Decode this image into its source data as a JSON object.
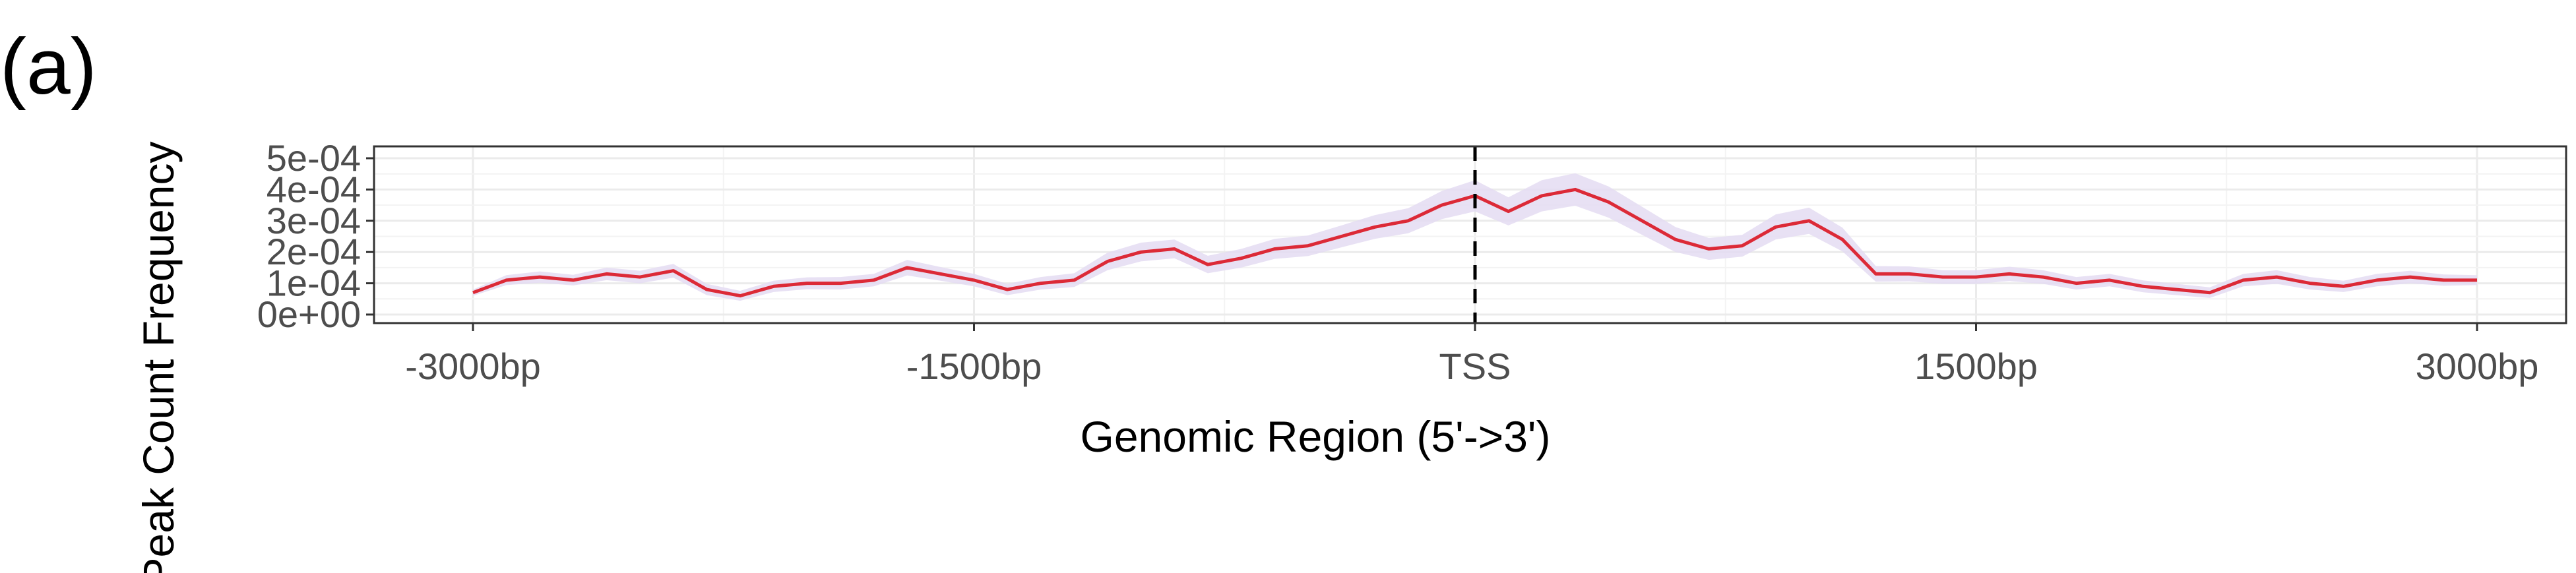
{
  "panel_label": "(a)",
  "chart_data": {
    "type": "line",
    "title": "",
    "xlabel": "Genomic Region (5'->3')",
    "ylabel": "Peak Count Frequency",
    "xlim": [
      -3000,
      3000
    ],
    "ylim": [
      0,
      0.0005
    ],
    "x_ticks": [
      {
        "value": -3000,
        "label": "-3000bp"
      },
      {
        "value": -1500,
        "label": "-1500bp"
      },
      {
        "value": 0,
        "label": "TSS"
      },
      {
        "value": 1500,
        "label": "1500bp"
      },
      {
        "value": 3000,
        "label": "3000bp"
      }
    ],
    "y_ticks": [
      {
        "value": 0,
        "label": "0e+00"
      },
      {
        "value": 0.0001,
        "label": "1e-04"
      },
      {
        "value": 0.0002,
        "label": "2e-04"
      },
      {
        "value": 0.0003,
        "label": "3e-04"
      },
      {
        "value": 0.0004,
        "label": "4e-04"
      },
      {
        "value": 0.0005,
        "label": "5e-04"
      }
    ],
    "grid": true,
    "reference_line": {
      "x": 0,
      "style": "dashed"
    },
    "series": [
      {
        "color": "#dc2a37",
        "band_color": "#e4dcf2",
        "points": [
          [
            -3000,
            7e-05
          ],
          [
            -2900,
            0.00011
          ],
          [
            -2800,
            0.00012
          ],
          [
            -2700,
            0.00011
          ],
          [
            -2600,
            0.00013
          ],
          [
            -2500,
            0.00012
          ],
          [
            -2400,
            0.00014
          ],
          [
            -2300,
            8e-05
          ],
          [
            -2200,
            6e-05
          ],
          [
            -2100,
            9e-05
          ],
          [
            -2000,
            0.0001
          ],
          [
            -1900,
            0.0001
          ],
          [
            -1800,
            0.00011
          ],
          [
            -1700,
            0.00015
          ],
          [
            -1600,
            0.00013
          ],
          [
            -1500,
            0.00011
          ],
          [
            -1400,
            8e-05
          ],
          [
            -1300,
            0.0001
          ],
          [
            -1200,
            0.00011
          ],
          [
            -1100,
            0.00017
          ],
          [
            -1000,
            0.0002
          ],
          [
            -900,
            0.00021
          ],
          [
            -800,
            0.00016
          ],
          [
            -700,
            0.00018
          ],
          [
            -600,
            0.00021
          ],
          [
            -500,
            0.00022
          ],
          [
            -400,
            0.00025
          ],
          [
            -300,
            0.00028
          ],
          [
            -200,
            0.0003
          ],
          [
            -100,
            0.00035
          ],
          [
            0,
            0.00038
          ],
          [
            100,
            0.00033
          ],
          [
            200,
            0.00038
          ],
          [
            300,
            0.0004
          ],
          [
            400,
            0.00036
          ],
          [
            500,
            0.0003
          ],
          [
            600,
            0.00024
          ],
          [
            700,
            0.00021
          ],
          [
            800,
            0.00022
          ],
          [
            900,
            0.00028
          ],
          [
            1000,
            0.0003
          ],
          [
            1100,
            0.00024
          ],
          [
            1200,
            0.00013
          ],
          [
            1300,
            0.00013
          ],
          [
            1400,
            0.00012
          ],
          [
            1500,
            0.00012
          ],
          [
            1600,
            0.00013
          ],
          [
            1700,
            0.00012
          ],
          [
            1800,
            0.0001
          ],
          [
            1900,
            0.00011
          ],
          [
            2000,
            9e-05
          ],
          [
            2100,
            8e-05
          ],
          [
            2200,
            7e-05
          ],
          [
            2300,
            0.00011
          ],
          [
            2400,
            0.00012
          ],
          [
            2500,
            0.0001
          ],
          [
            2600,
            9e-05
          ],
          [
            2700,
            0.00011
          ],
          [
            2800,
            0.00012
          ],
          [
            2900,
            0.00011
          ],
          [
            3000,
            0.00011
          ]
        ],
        "band_halfwidth": [
          1e-05,
          1.6e-05,
          1.8e-05,
          1.7e-05,
          2e-05,
          2e-05,
          2.2e-05,
          1.8e-05,
          1.6e-05,
          1.8e-05,
          1.9e-05,
          2e-05,
          2e-05,
          2.5e-05,
          2.2e-05,
          2e-05,
          1.8e-05,
          2e-05,
          2.2e-05,
          2.8e-05,
          3e-05,
          3e-05,
          2.8e-05,
          3e-05,
          3.2e-05,
          3.3e-05,
          3.5e-05,
          3.8e-05,
          4e-05,
          4.5e-05,
          5e-05,
          4.5e-05,
          5e-05,
          5.2e-05,
          5e-05,
          4.5e-05,
          4e-05,
          3.5e-05,
          3.5e-05,
          4e-05,
          4.2e-05,
          3.8e-05,
          2.5e-05,
          2.4e-05,
          2.2e-05,
          2.2e-05,
          2.3e-05,
          2.2e-05,
          2e-05,
          2e-05,
          1.9e-05,
          1.8e-05,
          1.7e-05,
          2e-05,
          2.2e-05,
          2e-05,
          1.8e-05,
          2e-05,
          2e-05,
          1.8e-05,
          1.6e-05
        ]
      }
    ]
  }
}
